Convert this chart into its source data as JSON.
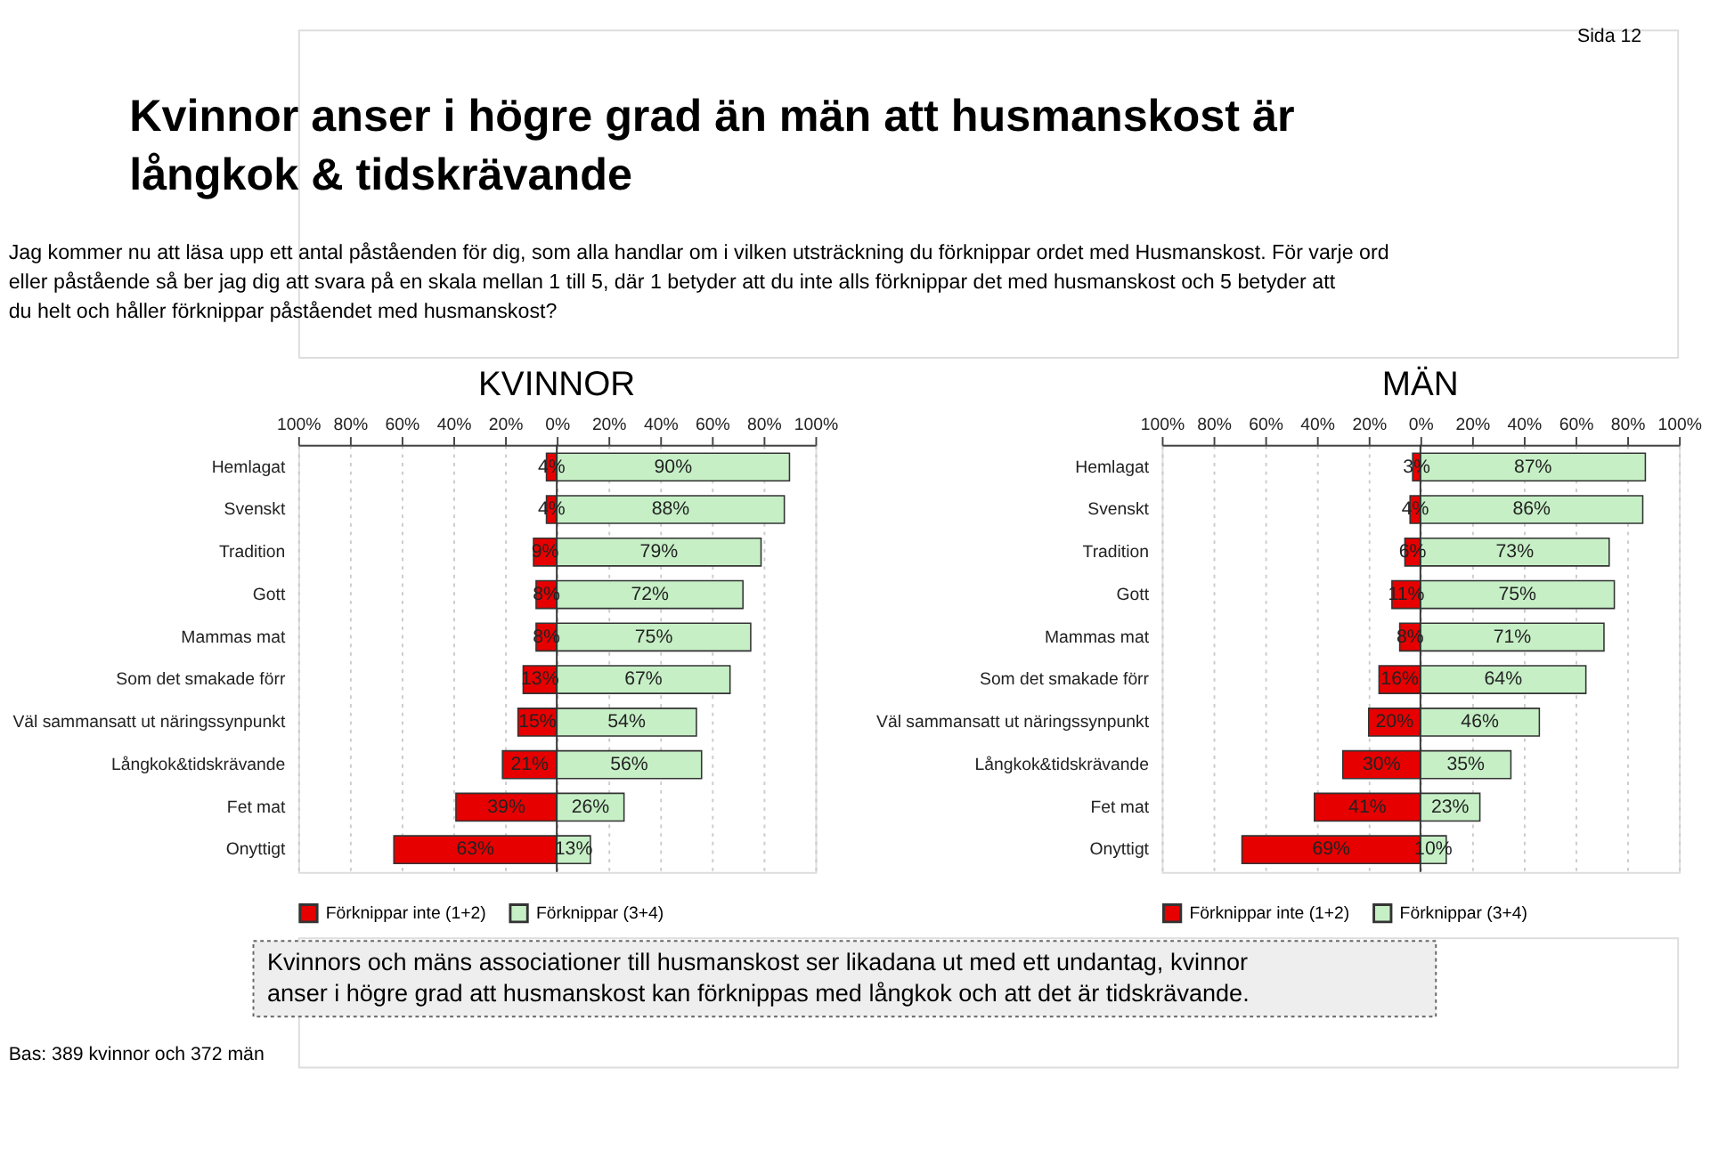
{
  "chart_data": [
    {
      "type": "bar",
      "orientation": "horizontal",
      "title": "KVINNOR",
      "categories": [
        "Hemlagat",
        "Svenskt",
        "Tradition",
        "Gott",
        "Mammas mat",
        "Som det smakade förr",
        "Väl sammansatt ut näringssynpunkt",
        "Långkok&tidskrävande",
        "Fet mat",
        "Onyttigt"
      ],
      "series": [
        {
          "name": "Förknippar inte (1+2)",
          "color": "#e60000",
          "base": [
            -4,
            -4,
            -9,
            -8,
            -8,
            -13,
            -15,
            -21,
            -39,
            -63
          ],
          "values": [
            4,
            4,
            9,
            8,
            8,
            13,
            15,
            21,
            39,
            63
          ],
          "value_labels": [
            "4%",
            "4%",
            "9%",
            "8%",
            "8%",
            "13%",
            "15%",
            "21%",
            "39%",
            "63%"
          ]
        },
        {
          "name": "Förknippar (3+4)",
          "color": "#c6efc6",
          "values": [
            90,
            88,
            79,
            72,
            75,
            67,
            54,
            56,
            26,
            13
          ],
          "value_labels": [
            "90%",
            "88%",
            "79%",
            "72%",
            "75%",
            "67%",
            "54%",
            "56%",
            "26%",
            "13%"
          ]
        }
      ],
      "xlim": [
        -100,
        100
      ],
      "xticks": [
        {
          "value": -100,
          "label": "100%"
        },
        {
          "value": -80,
          "label": "80%"
        },
        {
          "value": -60,
          "label": "60%"
        },
        {
          "value": -40,
          "label": "40%"
        },
        {
          "value": -20,
          "label": "20%"
        },
        {
          "value": 0,
          "label": "0%"
        },
        {
          "value": 20,
          "label": "20%"
        },
        {
          "value": 40,
          "label": "40%"
        },
        {
          "value": 60,
          "label": "60%"
        },
        {
          "value": 80,
          "label": "80%"
        },
        {
          "value": 100,
          "label": "100%"
        }
      ],
      "grid": "x",
      "legend": "bottom",
      "annotations": [
        "Kvinnor anser i högre grad än män att husmanskost är långkok & tidskrävande",
        "Jag kommer nu att läsa upp ett antal påståenden för dig, som alla handlar om i vilken utsträckning du förknippar ordet med Husmanskost. För varje ord eller påstående så ber jag dig att svara på en skala mellan 1 till 5, där 1 betyder att du inte alls förknippar det med husmanskost och 5 betyder att du helt och håller förknippar påståendet med husmanskost?",
        "Kvinnors och mäns associationer till husmanskost ser likadana ut med ett undantag, kvinnor anser i högre grad att husmanskost kan förknippas med långkok och att det är tidskrävande.",
        "Bas:  389 kvinnor och 372 män",
        "Sida 12"
      ]
    },
    {
      "type": "bar",
      "orientation": "horizontal",
      "title": "MÄN",
      "categories": [
        "Hemlagat",
        "Svenskt",
        "Tradition",
        "Gott",
        "Mammas mat",
        "Som det smakade förr",
        "Väl sammansatt ut näringssynpunkt",
        "Långkok&tidskrävande",
        "Fet mat",
        "Onyttigt"
      ],
      "series": [
        {
          "name": "Förknippar inte (1+2)",
          "color": "#e60000",
          "base": [
            -3,
            -4,
            -6,
            -11,
            -8,
            -16,
            -20,
            -30,
            -41,
            -69
          ],
          "values": [
            3,
            4,
            6,
            11,
            8,
            16,
            20,
            30,
            41,
            69
          ],
          "value_labels": [
            "3%",
            "4%",
            "6%",
            "11%",
            "8%",
            "16%",
            "20%",
            "30%",
            "41%",
            "69%"
          ]
        },
        {
          "name": "Förknippar (3+4)",
          "color": "#c6efc6",
          "values": [
            87,
            86,
            73,
            75,
            71,
            64,
            46,
            35,
            23,
            10
          ],
          "value_labels": [
            "87%",
            "86%",
            "73%",
            "75%",
            "71%",
            "64%",
            "46%",
            "35%",
            "23%",
            "10%"
          ]
        }
      ],
      "xlim": [
        -100,
        100
      ],
      "xticks": [
        {
          "value": -100,
          "label": "100%"
        },
        {
          "value": -80,
          "label": "80%"
        },
        {
          "value": -60,
          "label": "60%"
        },
        {
          "value": -40,
          "label": "40%"
        },
        {
          "value": -20,
          "label": "20%"
        },
        {
          "value": 0,
          "label": "0%"
        },
        {
          "value": 20,
          "label": "20%"
        },
        {
          "value": 40,
          "label": "40%"
        },
        {
          "value": 60,
          "label": "60%"
        },
        {
          "value": 80,
          "label": "80%"
        },
        {
          "value": 100,
          "label": "100%"
        }
      ],
      "grid": "x",
      "legend": "bottom"
    }
  ]
}
